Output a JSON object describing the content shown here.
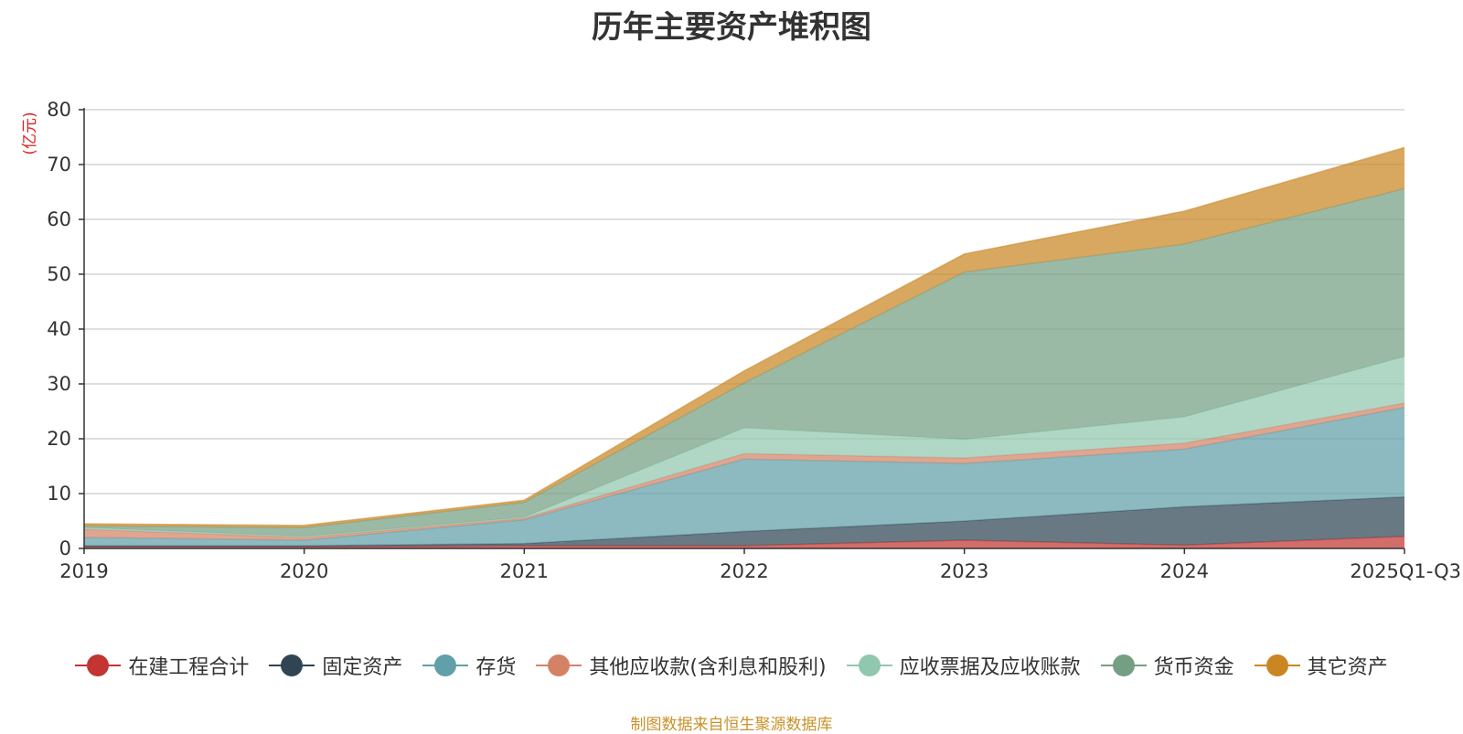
{
  "chart_data": {
    "type": "area",
    "stacked": true,
    "title": "历年主要资产堆积图",
    "unit_label": "(亿元)",
    "x": [
      "2019",
      "2020",
      "2021",
      "2022",
      "2023",
      "2024",
      "2025Q1-Q3"
    ],
    "ylim": [
      0,
      80
    ],
    "yticks": [
      0,
      10,
      20,
      30,
      40,
      50,
      60,
      70,
      80
    ],
    "grid": true,
    "legend_position": "bottom",
    "series": [
      {
        "name": "在建工程合计",
        "color": "#c23531",
        "values": [
          0.3,
          0.3,
          0.5,
          0.5,
          1.5,
          0.6,
          2.2
        ]
      },
      {
        "name": "固定资产",
        "color": "#2f4554",
        "values": [
          0.2,
          0.2,
          0.4,
          2.6,
          3.5,
          7.0,
          7.2
        ]
      },
      {
        "name": "存货",
        "color": "#61a0a8",
        "values": [
          1.5,
          1.0,
          4.3,
          13.2,
          10.5,
          10.5,
          16.3
        ]
      },
      {
        "name": "其他应收款(含利息和股利)",
        "color": "#d48265",
        "values": [
          1.5,
          0.5,
          0.3,
          1.0,
          1.0,
          1.1,
          0.8
        ]
      },
      {
        "name": "应收票据及应收账款",
        "color": "#91c7ae",
        "values": [
          0.3,
          0.2,
          0.2,
          4.7,
          3.4,
          4.8,
          8.5
        ]
      },
      {
        "name": "货币资金",
        "color": "#749f83",
        "values": [
          0.3,
          1.6,
          2.7,
          8.2,
          30.5,
          31.5,
          30.6
        ]
      },
      {
        "name": "其它资产",
        "color": "#ca8622",
        "values": [
          0.4,
          0.4,
          0.4,
          2.2,
          3.3,
          6.0,
          7.5
        ]
      }
    ]
  },
  "source_note": "制图数据来自恒生聚源数据库"
}
